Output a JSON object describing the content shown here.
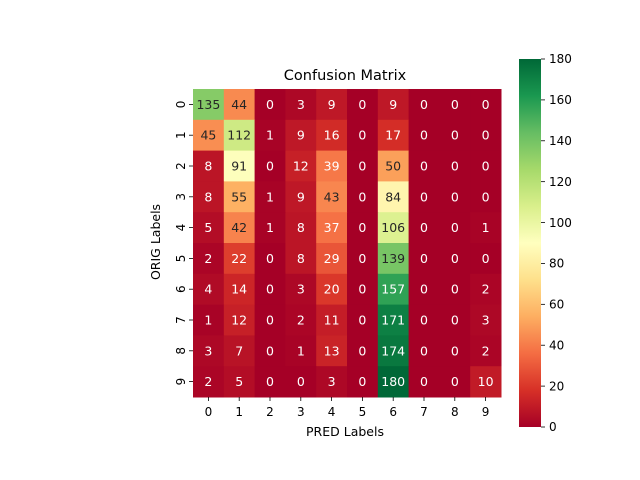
{
  "chart_data": {
    "type": "heatmap",
    "title": "Confusion Matrix",
    "xlabel": "PRED Labels",
    "ylabel": "ORIG Labels",
    "x_categories": [
      "0",
      "1",
      "2",
      "3",
      "4",
      "5",
      "6",
      "7",
      "8",
      "9"
    ],
    "y_categories": [
      "0",
      "1",
      "2",
      "3",
      "4",
      "5",
      "6",
      "7",
      "8",
      "9"
    ],
    "values": [
      [
        135,
        44,
        0,
        3,
        9,
        0,
        9,
        0,
        0,
        0
      ],
      [
        45,
        112,
        1,
        9,
        16,
        0,
        17,
        0,
        0,
        0
      ],
      [
        8,
        91,
        0,
        12,
        39,
        0,
        50,
        0,
        0,
        0
      ],
      [
        8,
        55,
        1,
        9,
        43,
        0,
        84,
        0,
        0,
        0
      ],
      [
        5,
        42,
        1,
        8,
        37,
        0,
        106,
        0,
        0,
        1
      ],
      [
        2,
        22,
        0,
        8,
        29,
        0,
        139,
        0,
        0,
        0
      ],
      [
        4,
        14,
        0,
        3,
        20,
        0,
        157,
        0,
        0,
        2
      ],
      [
        1,
        12,
        0,
        2,
        11,
        0,
        171,
        0,
        0,
        3
      ],
      [
        3,
        7,
        0,
        1,
        13,
        0,
        174,
        0,
        0,
        2
      ],
      [
        2,
        5,
        0,
        0,
        3,
        0,
        180,
        0,
        0,
        10
      ]
    ],
    "colormap": "RdYlGn",
    "vmin": 0,
    "vmax": 180,
    "colorbar_ticks": [
      0,
      20,
      40,
      60,
      80,
      100,
      120,
      140,
      160,
      180
    ],
    "annotated": true
  }
}
